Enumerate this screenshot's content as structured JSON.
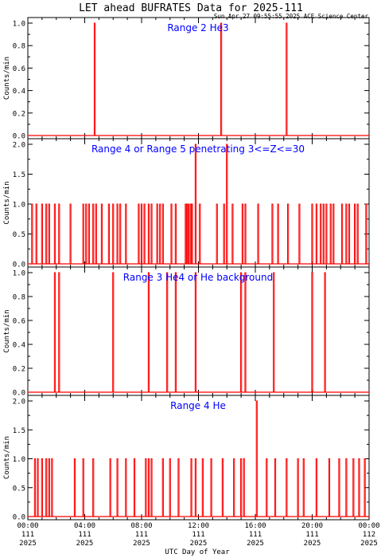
{
  "title": "LET ahead BUFRATES Data for 2025-111",
  "timestamp": "Sun Apr 27 09:55:55 2025 ACE Science Center",
  "xlabel": "UTC Day of Year",
  "ylabel": "Counts/min",
  "colors": {
    "data": "#ff0000",
    "panel_title": "#0000ff",
    "axes": "#000000"
  },
  "x_ticks": [
    {
      "time": "00:00",
      "doy": "111",
      "year": "2025"
    },
    {
      "time": "04:00",
      "doy": "111",
      "year": "2025"
    },
    {
      "time": "08:00",
      "doy": "111",
      "year": "2025"
    },
    {
      "time": "12:00",
      "doy": "111",
      "year": "2025"
    },
    {
      "time": "16:00",
      "doy": "111",
      "year": "2025"
    },
    {
      "time": "20:00",
      "doy": "111",
      "year": "2025"
    },
    {
      "time": "00:00",
      "doy": "112",
      "year": "2025"
    }
  ],
  "chart_data": [
    {
      "type": "line",
      "title": "Range 2 He3",
      "ylabel": "Counts/min",
      "xlim_hours": [
        0,
        24
      ],
      "ylim": [
        0,
        1
      ],
      "yticks": [
        "0.0",
        "0.2",
        "0.4",
        "0.6",
        "0.8",
        "1.0"
      ],
      "spikes": [
        {
          "t": 4.7,
          "v": 1.0
        },
        {
          "t": 13.6,
          "v": 1.0
        },
        {
          "t": 18.2,
          "v": 1.0
        }
      ]
    },
    {
      "type": "line",
      "title": "Range 4 or Range 5 penetrating 3<=Z<=30",
      "ylabel": "Counts/min",
      "xlim_hours": [
        0,
        24
      ],
      "ylim": [
        0,
        2
      ],
      "yticks": [
        "0.0",
        "0.5",
        "1.0",
        "1.5",
        "2.0"
      ],
      "spikes": [
        {
          "t": 0.3,
          "v": 1
        },
        {
          "t": 0.6,
          "v": 1
        },
        {
          "t": 1.0,
          "v": 1
        },
        {
          "t": 1.3,
          "v": 1
        },
        {
          "t": 1.5,
          "v": 1
        },
        {
          "t": 1.9,
          "v": 1
        },
        {
          "t": 2.2,
          "v": 1
        },
        {
          "t": 3.0,
          "v": 1
        },
        {
          "t": 3.9,
          "v": 1
        },
        {
          "t": 4.1,
          "v": 1
        },
        {
          "t": 4.3,
          "v": 1
        },
        {
          "t": 4.6,
          "v": 1
        },
        {
          "t": 4.8,
          "v": 1
        },
        {
          "t": 5.2,
          "v": 1
        },
        {
          "t": 5.7,
          "v": 1
        },
        {
          "t": 6.0,
          "v": 1
        },
        {
          "t": 6.3,
          "v": 1
        },
        {
          "t": 6.5,
          "v": 1
        },
        {
          "t": 6.9,
          "v": 1
        },
        {
          "t": 7.8,
          "v": 1
        },
        {
          "t": 8.0,
          "v": 1
        },
        {
          "t": 8.2,
          "v": 1
        },
        {
          "t": 8.5,
          "v": 1
        },
        {
          "t": 8.7,
          "v": 1
        },
        {
          "t": 9.1,
          "v": 1
        },
        {
          "t": 9.3,
          "v": 1
        },
        {
          "t": 9.5,
          "v": 1
        },
        {
          "t": 10.1,
          "v": 1
        },
        {
          "t": 10.4,
          "v": 1
        },
        {
          "t": 11.1,
          "v": 1
        },
        {
          "t": 11.2,
          "v": 1
        },
        {
          "t": 11.3,
          "v": 1
        },
        {
          "t": 11.45,
          "v": 1
        },
        {
          "t": 11.55,
          "v": 1
        },
        {
          "t": 11.8,
          "v": 2
        },
        {
          "t": 12.1,
          "v": 1
        },
        {
          "t": 13.3,
          "v": 1
        },
        {
          "t": 13.8,
          "v": 1
        },
        {
          "t": 14.0,
          "v": 2
        },
        {
          "t": 14.4,
          "v": 1
        },
        {
          "t": 15.1,
          "v": 1
        },
        {
          "t": 15.3,
          "v": 1
        },
        {
          "t": 16.2,
          "v": 1
        },
        {
          "t": 17.2,
          "v": 1
        },
        {
          "t": 17.6,
          "v": 1
        },
        {
          "t": 18.3,
          "v": 1
        },
        {
          "t": 19.1,
          "v": 1
        },
        {
          "t": 20.0,
          "v": 1
        },
        {
          "t": 20.3,
          "v": 1
        },
        {
          "t": 20.6,
          "v": 1
        },
        {
          "t": 20.8,
          "v": 1
        },
        {
          "t": 21.0,
          "v": 1
        },
        {
          "t": 21.3,
          "v": 1
        },
        {
          "t": 21.5,
          "v": 1
        },
        {
          "t": 22.1,
          "v": 1
        },
        {
          "t": 22.4,
          "v": 1
        },
        {
          "t": 22.6,
          "v": 1
        },
        {
          "t": 23.0,
          "v": 1
        },
        {
          "t": 23.2,
          "v": 1
        },
        {
          "t": 23.8,
          "v": 1
        }
      ]
    },
    {
      "type": "line",
      "title": "Range 3 He4 or He background",
      "ylabel": "Counts/min",
      "xlim_hours": [
        0,
        24
      ],
      "ylim": [
        0,
        1
      ],
      "yticks": [
        "0.0",
        "0.2",
        "0.4",
        "0.6",
        "0.8",
        "1.0"
      ],
      "spikes": [
        {
          "t": 1.9,
          "v": 1.0
        },
        {
          "t": 2.2,
          "v": 1.0
        },
        {
          "t": 6.0,
          "v": 1.0
        },
        {
          "t": 8.5,
          "v": 1.0
        },
        {
          "t": 9.8,
          "v": 1.0
        },
        {
          "t": 10.4,
          "v": 1.0
        },
        {
          "t": 11.8,
          "v": 1.0
        },
        {
          "t": 15.0,
          "v": 1.0
        },
        {
          "t": 15.3,
          "v": 1.0
        },
        {
          "t": 17.3,
          "v": 1.0
        },
        {
          "t": 20.0,
          "v": 1.0
        },
        {
          "t": 20.9,
          "v": 1.0
        }
      ]
    },
    {
      "type": "line",
      "title": "Range 4 He",
      "ylabel": "Counts/min",
      "xlim_hours": [
        0,
        24
      ],
      "ylim": [
        0,
        2
      ],
      "yticks": [
        "0.0",
        "0.5",
        "1.0",
        "1.5",
        "2.0"
      ],
      "spikes": [
        {
          "t": 0.5,
          "v": 1
        },
        {
          "t": 0.7,
          "v": 1
        },
        {
          "t": 1.0,
          "v": 1
        },
        {
          "t": 1.3,
          "v": 1
        },
        {
          "t": 1.5,
          "v": 1
        },
        {
          "t": 1.7,
          "v": 1
        },
        {
          "t": 3.3,
          "v": 1
        },
        {
          "t": 3.9,
          "v": 1
        },
        {
          "t": 4.6,
          "v": 1
        },
        {
          "t": 5.8,
          "v": 1
        },
        {
          "t": 6.3,
          "v": 1
        },
        {
          "t": 6.9,
          "v": 1
        },
        {
          "t": 7.5,
          "v": 1
        },
        {
          "t": 8.3,
          "v": 1
        },
        {
          "t": 8.5,
          "v": 1
        },
        {
          "t": 8.7,
          "v": 1
        },
        {
          "t": 9.5,
          "v": 1
        },
        {
          "t": 10.0,
          "v": 1
        },
        {
          "t": 10.6,
          "v": 1
        },
        {
          "t": 11.5,
          "v": 1
        },
        {
          "t": 11.8,
          "v": 1
        },
        {
          "t": 12.3,
          "v": 1
        },
        {
          "t": 12.9,
          "v": 1
        },
        {
          "t": 13.7,
          "v": 1
        },
        {
          "t": 14.5,
          "v": 1
        },
        {
          "t": 15.0,
          "v": 1
        },
        {
          "t": 15.2,
          "v": 1
        },
        {
          "t": 16.1,
          "v": 2
        },
        {
          "t": 16.8,
          "v": 1
        },
        {
          "t": 17.4,
          "v": 1
        },
        {
          "t": 18.2,
          "v": 1
        },
        {
          "t": 19.0,
          "v": 1
        },
        {
          "t": 19.4,
          "v": 1
        },
        {
          "t": 20.3,
          "v": 1
        },
        {
          "t": 21.2,
          "v": 1
        },
        {
          "t": 21.9,
          "v": 1
        },
        {
          "t": 22.4,
          "v": 1
        },
        {
          "t": 22.9,
          "v": 1
        },
        {
          "t": 23.3,
          "v": 1
        },
        {
          "t": 23.7,
          "v": 1
        }
      ]
    }
  ]
}
